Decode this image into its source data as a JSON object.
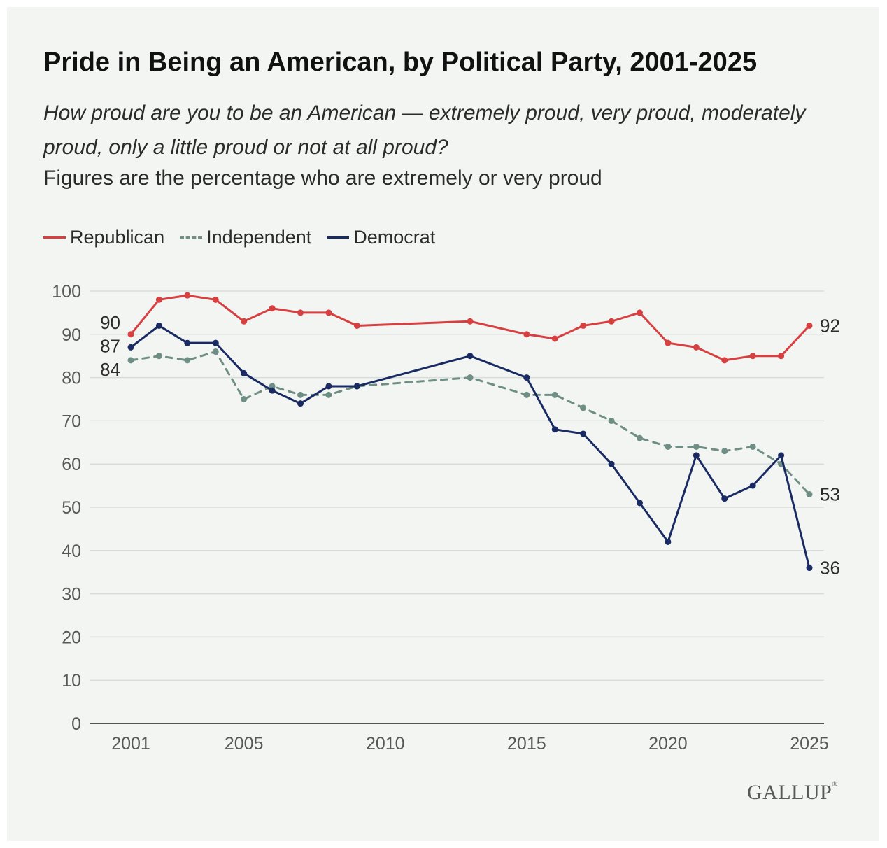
{
  "title": "Pride in Being an American, by Political Party, 2001-2025",
  "question": "How proud are you to be an American — extremely proud, very proud, moderately proud, only a little proud or not at all proud?",
  "note": "Figures are the percentage who are extremely or very proud",
  "logo": {
    "text": "GALLUP",
    "mark": "®"
  },
  "chart_data": {
    "type": "line",
    "ylim": [
      0,
      100
    ],
    "yticks": [
      0,
      10,
      20,
      30,
      40,
      50,
      60,
      70,
      80,
      90,
      100
    ],
    "xlim": [
      2000.5,
      2026
    ],
    "xticks": [
      2001,
      2005,
      2010,
      2015,
      2020,
      2025
    ],
    "grid": true,
    "legend_position": "top-left",
    "series": [
      {
        "name": "Republican",
        "color": "#d83f41",
        "style": "solid",
        "x": [
          2001,
          2002,
          2003,
          2004,
          2005,
          2006,
          2007,
          2008,
          2009,
          2013,
          2015,
          2016,
          2017,
          2018,
          2019,
          2020,
          2021,
          2022,
          2023,
          2024,
          2025
        ],
        "values": [
          90,
          98,
          99,
          98,
          93,
          96,
          95,
          95,
          92,
          93,
          90,
          89,
          92,
          93,
          95,
          88,
          87,
          84,
          85,
          85,
          92
        ],
        "labels": [
          {
            "x": 2001,
            "text": "90",
            "side": "left"
          },
          {
            "x": 2025,
            "text": "92",
            "side": "right"
          }
        ]
      },
      {
        "name": "Independent",
        "color": "#6f8f86",
        "style": "dashed",
        "x": [
          2001,
          2002,
          2003,
          2004,
          2005,
          2006,
          2007,
          2008,
          2009,
          2013,
          2015,
          2016,
          2017,
          2018,
          2019,
          2020,
          2021,
          2022,
          2023,
          2024,
          2025
        ],
        "values": [
          84,
          85,
          84,
          86,
          75,
          78,
          76,
          76,
          78,
          80,
          76,
          76,
          73,
          70,
          66,
          64,
          64,
          63,
          64,
          60,
          53
        ],
        "labels": [
          {
            "x": 2001,
            "text": "84",
            "side": "left"
          },
          {
            "x": 2025,
            "text": "53",
            "side": "right"
          }
        ]
      },
      {
        "name": "Democrat",
        "color": "#1a2b63",
        "style": "solid",
        "x": [
          2001,
          2002,
          2003,
          2004,
          2005,
          2006,
          2007,
          2008,
          2009,
          2013,
          2015,
          2016,
          2017,
          2018,
          2019,
          2020,
          2021,
          2022,
          2023,
          2024,
          2025
        ],
        "values": [
          87,
          92,
          88,
          88,
          81,
          77,
          74,
          78,
          78,
          85,
          80,
          68,
          67,
          60,
          51,
          42,
          62,
          52,
          55,
          62,
          36
        ],
        "labels": [
          {
            "x": 2001,
            "text": "87",
            "side": "left"
          },
          {
            "x": 2025,
            "text": "36",
            "side": "right"
          }
        ]
      }
    ]
  }
}
